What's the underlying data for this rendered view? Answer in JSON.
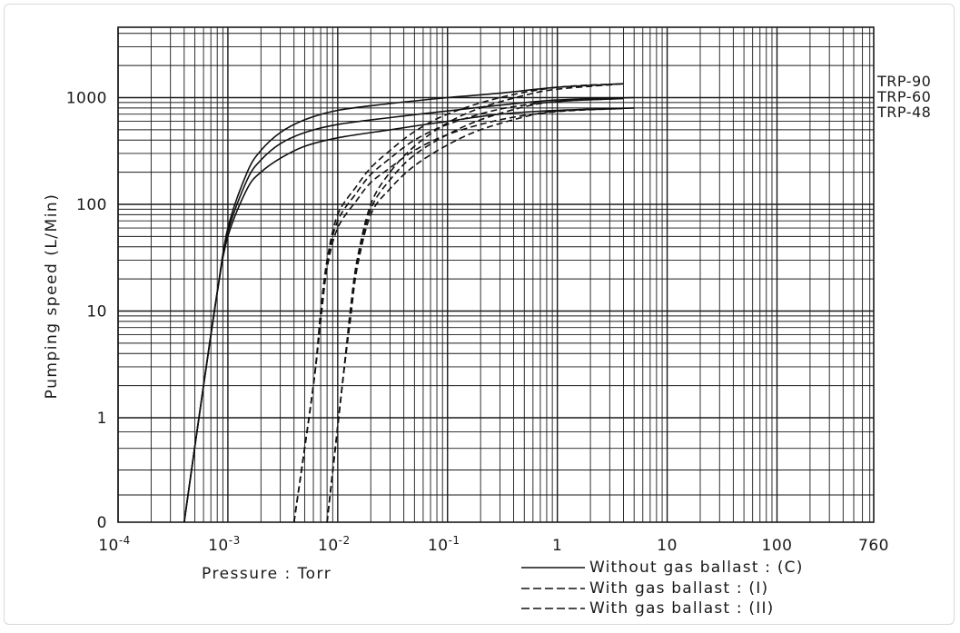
{
  "chart_data": {
    "type": "line",
    "xlabel": "Pressure : Torr",
    "ylabel": "Pumping speed (L/Min)",
    "x_scale": "log",
    "y_scale": "log",
    "xlim": [
      0.0001,
      760
    ],
    "ylim_decades": [
      0,
      1,
      10,
      100,
      1000
    ],
    "grid": true,
    "x_ticks": [
      {
        "value": 0.0001,
        "base": "10",
        "exp": "-4"
      },
      {
        "value": 0.001,
        "base": "10",
        "exp": "-3"
      },
      {
        "value": 0.01,
        "base": "10",
        "exp": "-2"
      },
      {
        "value": 0.1,
        "base": "10",
        "exp": "-1"
      },
      {
        "value": 1,
        "label": "1"
      },
      {
        "value": 10,
        "label": "10"
      },
      {
        "value": 100,
        "label": "100"
      },
      {
        "value": 760,
        "label": "760"
      }
    ],
    "y_ticks": [
      "0",
      "1",
      "10",
      "100",
      "1000"
    ],
    "model_labels": [
      "TRP-90",
      "TRP-60",
      "TRP-48"
    ],
    "legend": [
      {
        "label": "Without gas ballast : (C)",
        "style": "solid"
      },
      {
        "label": "With gas ballast : (I)",
        "style": "dashed"
      },
      {
        "label": "With gas ballast : (II)",
        "style": "dashed"
      }
    ],
    "series": [
      {
        "model": "TRP-90",
        "mode": "C",
        "x": [
          0.0004,
          0.0006,
          0.0008,
          0.001,
          0.0015,
          0.002,
          0.003,
          0.005,
          0.01,
          0.03,
          0.1,
          0.3,
          1,
          4
        ],
        "y": [
          0,
          2,
          15,
          60,
          200,
          320,
          470,
          620,
          760,
          880,
          1000,
          1100,
          1250,
          1350
        ]
      },
      {
        "model": "TRP-60",
        "mode": "C",
        "x": [
          0.0004,
          0.0006,
          0.0008,
          0.001,
          0.0015,
          0.002,
          0.003,
          0.005,
          0.01,
          0.03,
          0.1,
          0.3,
          1,
          5
        ],
        "y": [
          0,
          2,
          15,
          55,
          170,
          260,
          370,
          470,
          560,
          650,
          750,
          850,
          950,
          1000
        ]
      },
      {
        "model": "TRP-48",
        "mode": "C",
        "x": [
          0.0004,
          0.0006,
          0.0008,
          0.001,
          0.0015,
          0.002,
          0.003,
          0.005,
          0.01,
          0.03,
          0.1,
          0.3,
          1,
          5
        ],
        "y": [
          0,
          2,
          15,
          50,
          140,
          200,
          270,
          350,
          420,
          500,
          600,
          700,
          760,
          800
        ]
      },
      {
        "model": "TRP-90",
        "mode": "I",
        "x": [
          0.004,
          0.006,
          0.007,
          0.008,
          0.01,
          0.015,
          0.02,
          0.03,
          0.05,
          0.1,
          0.3,
          1,
          4
        ],
        "y": [
          0,
          2,
          10,
          30,
          80,
          150,
          220,
          320,
          480,
          700,
          1000,
          1250,
          1350
        ]
      },
      {
        "model": "TRP-60",
        "mode": "I",
        "x": [
          0.004,
          0.006,
          0.007,
          0.008,
          0.01,
          0.015,
          0.02,
          0.03,
          0.05,
          0.1,
          0.3,
          1,
          4
        ],
        "y": [
          0,
          2,
          9,
          28,
          70,
          130,
          190,
          270,
          400,
          560,
          780,
          920,
          980
        ]
      },
      {
        "model": "TRP-48",
        "mode": "I",
        "x": [
          0.004,
          0.006,
          0.007,
          0.008,
          0.01,
          0.015,
          0.02,
          0.03,
          0.05,
          0.1,
          0.3,
          1,
          4
        ],
        "y": [
          0,
          2,
          8,
          25,
          60,
          110,
          160,
          220,
          320,
          450,
          620,
          740,
          790
        ]
      },
      {
        "model": "TRP-90",
        "mode": "II",
        "x": [
          0.008,
          0.011,
          0.013,
          0.015,
          0.02,
          0.03,
          0.05,
          0.1,
          0.2,
          0.5,
          1,
          4
        ],
        "y": [
          0,
          2,
          10,
          30,
          100,
          200,
          350,
          580,
          800,
          1050,
          1200,
          1350
        ]
      },
      {
        "model": "TRP-60",
        "mode": "II",
        "x": [
          0.008,
          0.011,
          0.013,
          0.015,
          0.02,
          0.03,
          0.05,
          0.1,
          0.2,
          0.5,
          1,
          4
        ],
        "y": [
          0,
          2,
          9,
          28,
          90,
          170,
          290,
          450,
          620,
          820,
          920,
          980
        ]
      },
      {
        "model": "TRP-48",
        "mode": "II",
        "x": [
          0.008,
          0.011,
          0.013,
          0.015,
          0.02,
          0.03,
          0.05,
          0.1,
          0.2,
          0.5,
          1,
          4
        ],
        "y": [
          0,
          2,
          8,
          25,
          80,
          140,
          230,
          360,
          500,
          660,
          750,
          790
        ]
      }
    ]
  }
}
